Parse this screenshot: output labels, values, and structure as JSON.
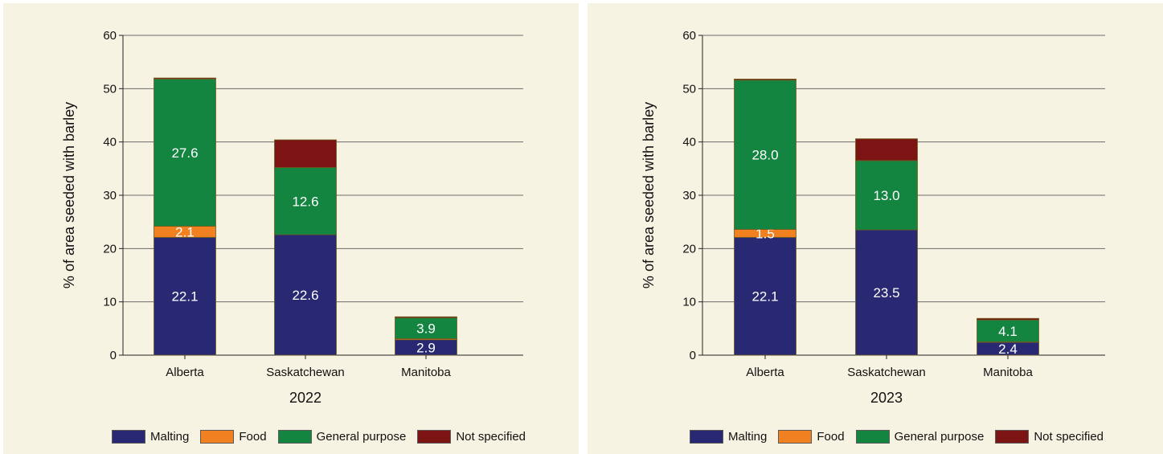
{
  "chart_data": [
    {
      "type": "bar",
      "stacked": true,
      "title": "",
      "xlabel": "2022",
      "ylabel": "% of area seeded with barley",
      "ylim": [
        0,
        60
      ],
      "yticks": [
        0,
        10,
        20,
        30,
        40,
        50,
        60
      ],
      "grid": true,
      "legend_position": "bottom",
      "categories": [
        "Alberta",
        "Saskatchewan",
        "Manitoba"
      ],
      "series": [
        {
          "name": "Malting",
          "color": "#282873",
          "values": [
            22.1,
            22.6,
            2.9
          ],
          "labels": [
            "22.1",
            "22.6",
            "2.9"
          ]
        },
        {
          "name": "Food",
          "color": "#f08020",
          "values": [
            2.1,
            0,
            0.2
          ],
          "labels": [
            "2.1",
            "",
            ""
          ]
        },
        {
          "name": "General purpose",
          "color": "#138540",
          "values": [
            27.6,
            12.6,
            3.9
          ],
          "labels": [
            "27.6",
            "12.6",
            "3.9"
          ]
        },
        {
          "name": "Not specified",
          "color": "#7d1414",
          "values": [
            0.2,
            5.2,
            0.2
          ],
          "labels": [
            "",
            "",
            ""
          ]
        }
      ]
    },
    {
      "type": "bar",
      "stacked": true,
      "title": "",
      "xlabel": "2023",
      "ylabel": "% of area seeded with barley",
      "ylim": [
        0,
        60
      ],
      "yticks": [
        0,
        10,
        20,
        30,
        40,
        50,
        60
      ],
      "grid": true,
      "legend_position": "bottom",
      "categories": [
        "Alberta",
        "Saskatchewan",
        "Manitoba"
      ],
      "series": [
        {
          "name": "Malting",
          "color": "#282873",
          "values": [
            22.1,
            23.5,
            2.4
          ],
          "labels": [
            "22.1",
            "23.5",
            "2.4"
          ]
        },
        {
          "name": "Food",
          "color": "#f08020",
          "values": [
            1.5,
            0,
            0.1
          ],
          "labels": [
            "1.5",
            "",
            ""
          ]
        },
        {
          "name": "General purpose",
          "color": "#138540",
          "values": [
            28.0,
            13.0,
            4.1
          ],
          "labels": [
            "28.0",
            "13.0",
            "4.1"
          ]
        },
        {
          "name": "Not specified",
          "color": "#7d1414",
          "values": [
            0.2,
            4.1,
            0.3
          ],
          "labels": [
            "",
            "",
            ""
          ]
        }
      ]
    }
  ]
}
